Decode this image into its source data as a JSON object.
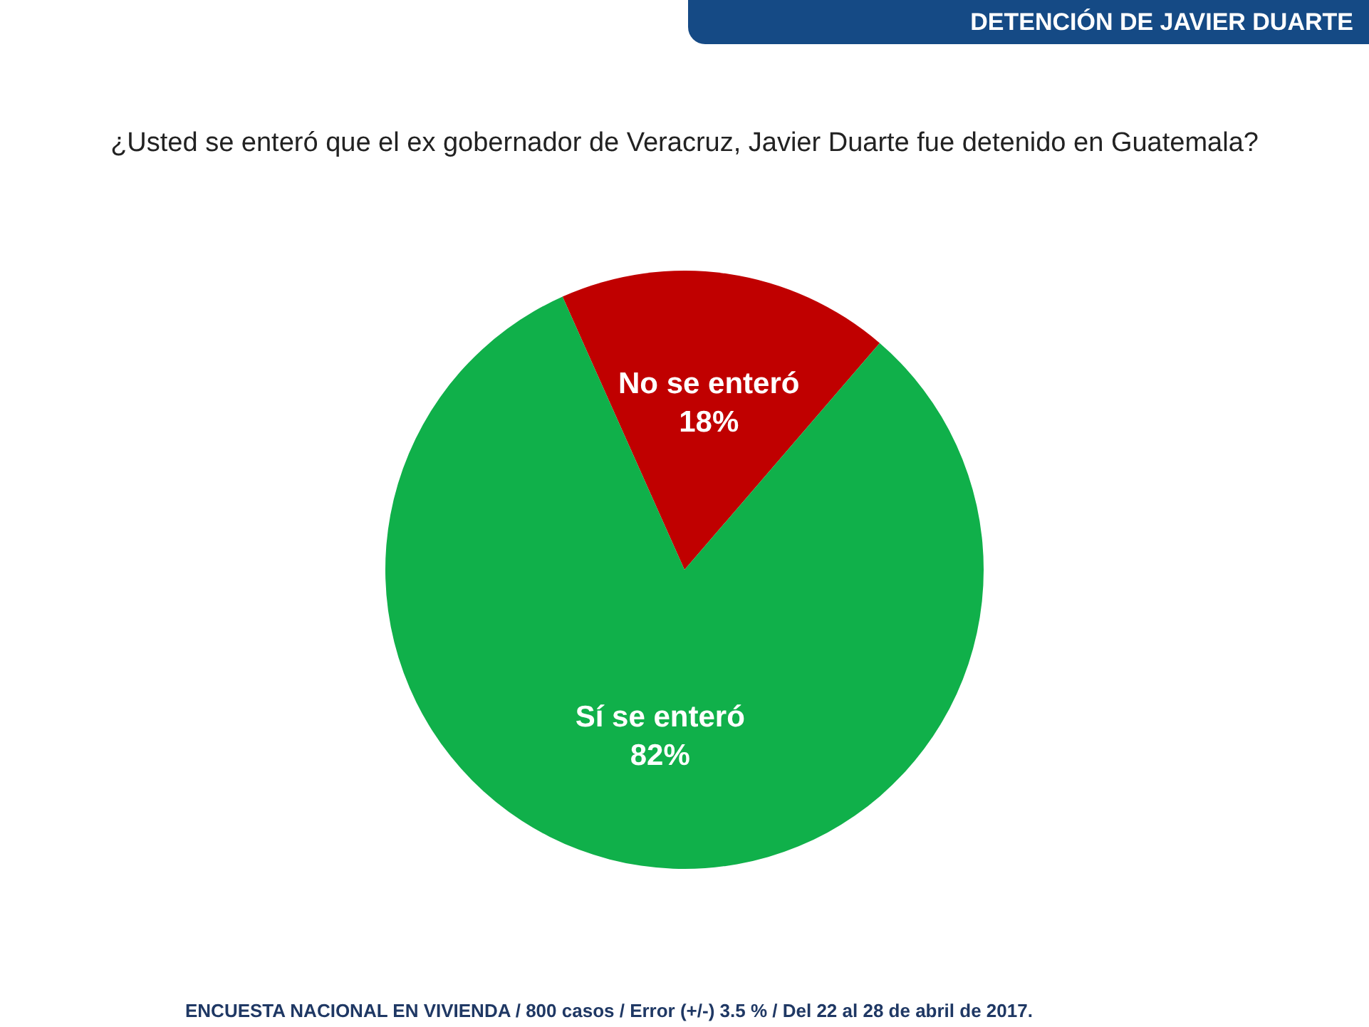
{
  "chart_data": {
    "type": "pie",
    "title": "DETENCIÓN DE JAVIER DUARTE",
    "subtitle": "¿Usted se enteró que el ex gobernador de Veracruz, Javier Duarte fue detenido en Guatemala?",
    "categories": [
      "No se enteró",
      "Sí se enteró"
    ],
    "values": [
      18,
      82
    ],
    "colors": [
      "#c00000",
      "#10b04a"
    ],
    "value_labels": [
      "18%",
      "82%"
    ],
    "annotations": [
      "ENCUESTA NACIONAL EN VIVIENDA / 800 casos / Error (+/-) 3.5 % / Del 22 al 28 de abril de 2017."
    ]
  }
}
